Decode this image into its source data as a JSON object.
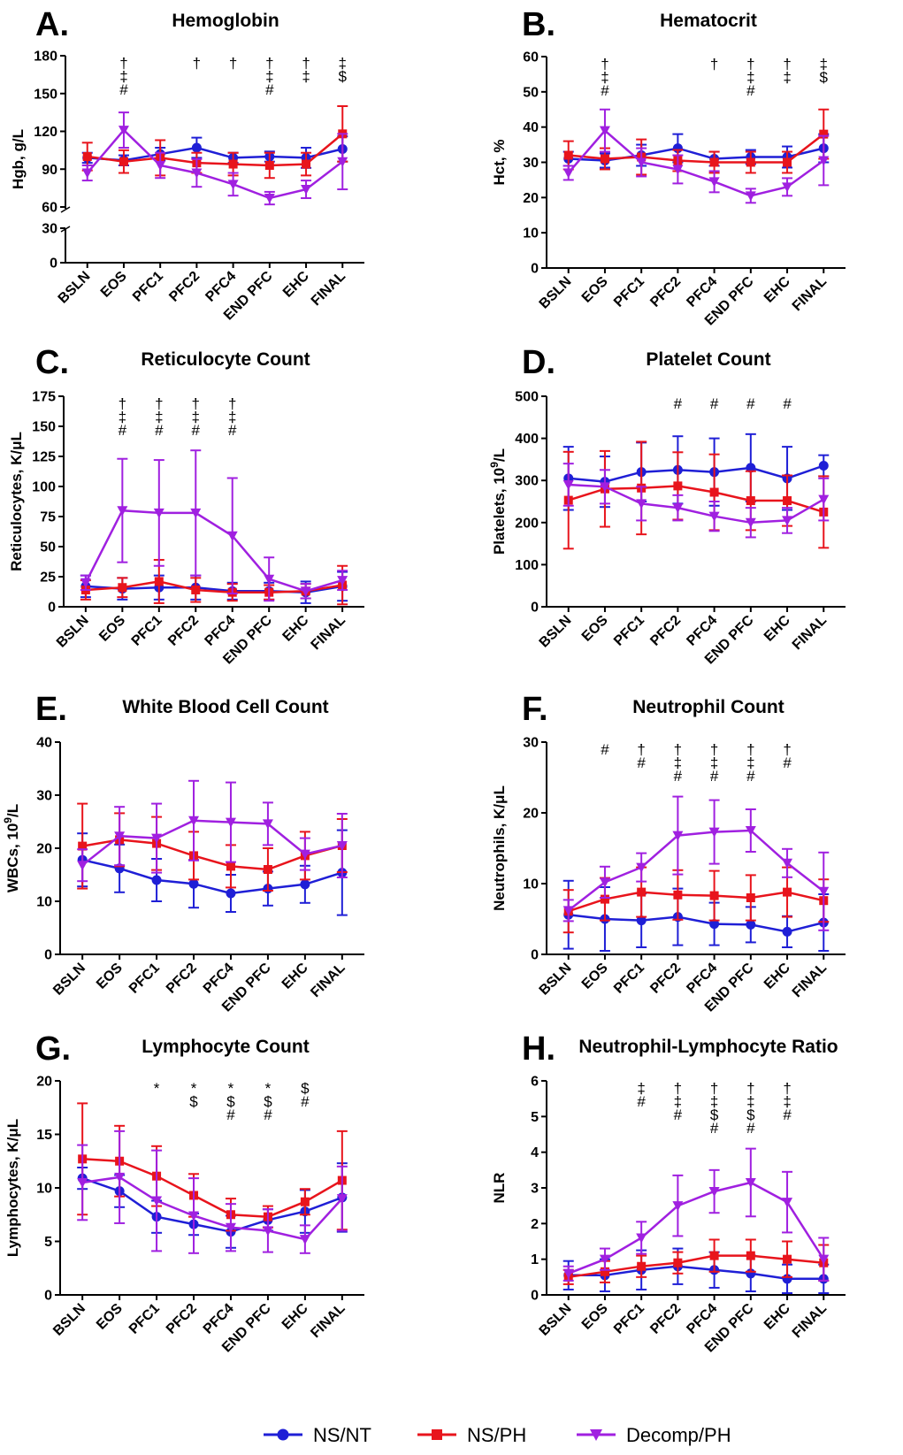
{
  "colors": {
    "ns_nt": "#1f1fd6",
    "ns_ph": "#e8141c",
    "decomp_ph": "#a020e0",
    "axis": "#000000"
  },
  "legend": {
    "items": [
      {
        "name": "NS/NT",
        "color": "#1f1fd6",
        "marker": "circle"
      },
      {
        "name": "NS/PH",
        "color": "#e8141c",
        "marker": "square"
      },
      {
        "name": "Decomp/PH",
        "color": "#a020e0",
        "marker": "triangle-down"
      }
    ]
  },
  "chart_data": [
    {
      "type": "line",
      "letter": "A.",
      "title": "Hemoglobin",
      "ylabel": "Hgb, g/L",
      "categories": [
        "BSLN",
        "EOS",
        "PFC1",
        "PFC2",
        "PFC4",
        "END PFC",
        "EHC",
        "FINAL"
      ],
      "y_broken": true,
      "ylim_lower": [
        0,
        30
      ],
      "ylim_upper": [
        60,
        180
      ],
      "yticks": [
        0,
        30,
        60,
        90,
        120,
        150,
        180
      ],
      "series": [
        {
          "name": "NS/NT",
          "values": [
            99,
            97,
            102,
            107,
            99,
            100,
            99,
            106
          ],
          "errors": [
            4,
            4,
            5,
            8,
            4,
            4,
            8,
            10
          ]
        },
        {
          "name": "NS/PH",
          "values": [
            100,
            96,
            99,
            95,
            94,
            93,
            94,
            118
          ],
          "errors": [
            11,
            9,
            14,
            8,
            9,
            10,
            9,
            22
          ]
        },
        {
          "name": "Decomp/PH",
          "values": [
            87,
            121,
            93,
            87,
            78,
            67,
            74,
            96
          ],
          "errors": [
            6,
            14,
            10,
            11,
            9,
            5,
            7,
            22
          ]
        }
      ],
      "annotations": [
        [
          "EOS",
          "†\n‡\n#"
        ],
        [
          "PFC2",
          "†"
        ],
        [
          "PFC4",
          "†"
        ],
        [
          "END PFC",
          "†\n‡\n#"
        ],
        [
          "EHC",
          "†\n‡"
        ],
        [
          "FINAL",
          "‡\n$"
        ]
      ]
    },
    {
      "type": "line",
      "letter": "B.",
      "title": "Hematocrit",
      "ylabel": "Hct, %",
      "categories": [
        "BSLN",
        "EOS",
        "PFC1",
        "PFC2",
        "PFC4",
        "END PFC",
        "EHC",
        "FINAL"
      ],
      "ylim": [
        0,
        60
      ],
      "yticks": [
        0,
        10,
        20,
        30,
        40,
        50,
        60
      ],
      "series": [
        {
          "name": "NS/NT",
          "values": [
            31,
            30.5,
            32,
            34,
            31,
            31.5,
            31.5,
            34
          ],
          "errors": [
            2,
            2,
            3,
            4,
            2,
            2,
            3,
            4
          ]
        },
        {
          "name": "NS/PH",
          "values": [
            32,
            31,
            31.5,
            30.5,
            30,
            30,
            30,
            38
          ],
          "errors": [
            4,
            3,
            5,
            3,
            3,
            3,
            3,
            7
          ]
        },
        {
          "name": "Decomp/PH",
          "values": [
            27,
            39,
            30,
            28,
            24.5,
            20.5,
            23,
            30.5
          ],
          "errors": [
            2,
            6,
            4,
            4,
            3,
            2,
            2.5,
            7
          ]
        }
      ],
      "annotations": [
        [
          "EOS",
          "†\n‡\n#"
        ],
        [
          "PFC4",
          "†"
        ],
        [
          "END PFC",
          "†\n‡\n#"
        ],
        [
          "EHC",
          "†\n‡"
        ],
        [
          "FINAL",
          "‡\n$"
        ]
      ]
    },
    {
      "type": "line",
      "letter": "C.",
      "title": "Reticulocyte Count",
      "ylabel": "Reticulocytes, K/μL",
      "categories": [
        "BSLN",
        "EOS",
        "PFC1",
        "PFC2",
        "PFC4",
        "END PFC",
        "EHC",
        "FINAL"
      ],
      "ylim": [
        0,
        175
      ],
      "yticks": [
        0,
        25,
        50,
        75,
        100,
        125,
        150,
        175
      ],
      "series": [
        {
          "name": "NS/NT",
          "values": [
            17,
            15,
            16,
            16,
            13,
            13,
            12,
            17
          ],
          "errors": [
            9,
            9,
            10,
            10,
            7,
            7,
            9,
            12
          ]
        },
        {
          "name": "NS/PH",
          "values": [
            14,
            16,
            21,
            14,
            12,
            12,
            13,
            18
          ],
          "errors": [
            8,
            8,
            18,
            10,
            7,
            6,
            6,
            16
          ]
        },
        {
          "name": "Decomp/PH",
          "values": [
            20,
            80,
            78,
            78,
            59,
            23,
            13,
            22
          ],
          "errors": [
            6,
            43,
            44,
            52,
            48,
            18,
            6,
            8
          ]
        }
      ],
      "annotations": [
        [
          "EOS",
          "†\n‡\n#"
        ],
        [
          "PFC1",
          "†\n‡\n#"
        ],
        [
          "PFC2",
          "†\n‡\n#"
        ],
        [
          "PFC4",
          "†\n‡\n#"
        ]
      ]
    },
    {
      "type": "line",
      "letter": "D.",
      "title": "Platelet Count",
      "ylabel": "Platelets, 10⁹/L",
      "categories": [
        "BSLN",
        "EOS",
        "PFC1",
        "PFC2",
        "PFC4",
        "END PFC",
        "EHC",
        "FINAL"
      ],
      "ylim": [
        0,
        500
      ],
      "yticks": [
        0,
        100,
        200,
        300,
        400,
        500
      ],
      "series": [
        {
          "name": "NS/NT",
          "values": [
            305,
            297,
            320,
            325,
            320,
            330,
            305,
            335
          ],
          "errors": [
            75,
            60,
            70,
            80,
            80,
            80,
            75,
            25
          ]
        },
        {
          "name": "NS/PH",
          "values": [
            253,
            280,
            282,
            287,
            272,
            252,
            252,
            225
          ],
          "errors": [
            115,
            90,
            110,
            80,
            90,
            70,
            60,
            85
          ]
        },
        {
          "name": "Decomp/PH",
          "values": [
            290,
            285,
            245,
            235,
            215,
            200,
            205,
            255
          ],
          "errors": [
            50,
            40,
            40,
            30,
            35,
            35,
            30,
            50
          ]
        }
      ],
      "annotations": [
        [
          "PFC2",
          "#"
        ],
        [
          "PFC4",
          "#"
        ],
        [
          "END PFC",
          "#"
        ],
        [
          "EHC",
          "#"
        ]
      ]
    },
    {
      "type": "line",
      "letter": "E.",
      "title": "White Blood Cell Count",
      "ylabel": "WBCs, 10⁹/L",
      "categories": [
        "BSLN",
        "EOS",
        "PFC1",
        "PFC2",
        "PFC4",
        "END PFC",
        "EHC",
        "FINAL"
      ],
      "ylim": [
        0,
        40
      ],
      "yticks": [
        0,
        10,
        20,
        30,
        40
      ],
      "series": [
        {
          "name": "NS/NT",
          "values": [
            17.8,
            16.2,
            14,
            13.3,
            11.5,
            12.4,
            13.2,
            15.4
          ],
          "errors": [
            5,
            4.5,
            4,
            4.5,
            3.5,
            3.2,
            3.5,
            8
          ]
        },
        {
          "name": "NS/PH",
          "values": [
            20.4,
            21.6,
            20.9,
            18.6,
            16.6,
            16,
            18.6,
            20.5
          ],
          "errors": [
            8,
            5,
            5,
            4.5,
            4,
            4,
            4.5,
            5
          ]
        },
        {
          "name": "Decomp/PH",
          "values": [
            16.8,
            22.3,
            21.9,
            25.2,
            24.9,
            24.6,
            18.9,
            20.5
          ],
          "errors": [
            3,
            5.5,
            6.5,
            7.5,
            7.5,
            4,
            3,
            6
          ]
        }
      ],
      "annotations": []
    },
    {
      "type": "line",
      "letter": "F.",
      "title": "Neutrophil  Count",
      "ylabel": "Neutrophils, K/μL",
      "categories": [
        "BSLN",
        "EOS",
        "PFC1",
        "PFC2",
        "PFC4",
        "END PFC",
        "EHC",
        "FINAL"
      ],
      "ylim": [
        0,
        30
      ],
      "yticks": [
        0,
        10,
        20,
        30
      ],
      "series": [
        {
          "name": "NS/NT",
          "values": [
            5.6,
            5,
            4.8,
            5.3,
            4.3,
            4.2,
            3.2,
            4.5
          ],
          "errors": [
            4.8,
            4.5,
            3.8,
            4,
            3,
            2.5,
            2.2,
            4
          ]
        },
        {
          "name": "NS/PH",
          "values": [
            6.1,
            7.8,
            8.8,
            8.4,
            8.3,
            8,
            8.8,
            7.6
          ],
          "errors": [
            3,
            3,
            3.5,
            3.5,
            3.5,
            3.2,
            3.5,
            3
          ]
        },
        {
          "name": "Decomp/PH",
          "values": [
            6.2,
            10.2,
            12.3,
            16.8,
            17.3,
            17.5,
            12.9,
            8.9
          ],
          "errors": [
            1.5,
            2.2,
            2,
            5.5,
            4.5,
            3,
            2,
            5.5
          ]
        }
      ],
      "annotations": [
        [
          "EOS",
          "#"
        ],
        [
          "PFC1",
          "†\n#"
        ],
        [
          "PFC2",
          "†\n‡\n#"
        ],
        [
          "PFC4",
          "†\n‡\n#"
        ],
        [
          "END PFC",
          "†\n‡\n#"
        ],
        [
          "EHC",
          "†\n#"
        ]
      ]
    },
    {
      "type": "line",
      "letter": "G.",
      "title": "Lymphocyte  Count",
      "ylabel": "Lymphocytes, K/μL",
      "categories": [
        "BSLN",
        "EOS",
        "PFC1",
        "PFC2",
        "PFC4",
        "END PFC",
        "EHC",
        "FINAL"
      ],
      "ylim": [
        0,
        20
      ],
      "yticks": [
        0,
        5,
        10,
        15,
        20
      ],
      "series": [
        {
          "name": "NS/NT",
          "values": [
            10.9,
            9.7,
            7.3,
            6.6,
            5.9,
            7,
            7.8,
            9.1
          ],
          "errors": [
            1,
            1.5,
            1.5,
            1,
            1.5,
            1,
            2,
            3.2
          ]
        },
        {
          "name": "NS/PH",
          "values": [
            12.7,
            12.5,
            11.1,
            9.3,
            7.5,
            7.3,
            8.7,
            10.7
          ],
          "errors": [
            5.2,
            3.3,
            2.8,
            2,
            1.5,
            1,
            1.2,
            4.6
          ]
        },
        {
          "name": "Decomp/PH",
          "values": [
            10.5,
            11,
            8.8,
            7.4,
            6.3,
            6,
            5.2,
            9
          ],
          "errors": [
            3.5,
            4.3,
            4.7,
            3.5,
            2.2,
            2,
            1.3,
            3
          ]
        }
      ],
      "annotations": [
        [
          "PFC1",
          "*"
        ],
        [
          "PFC2",
          "*\n$"
        ],
        [
          "PFC4",
          "*\n$\n#"
        ],
        [
          "END PFC",
          "*\n$\n#"
        ],
        [
          "EHC",
          "$\n#"
        ]
      ]
    },
    {
      "type": "line",
      "letter": "H.",
      "title": "Neutrophil-Lymphocyte Ratio",
      "ylabel": "NLR",
      "categories": [
        "BSLN",
        "EOS",
        "PFC1",
        "PFC2",
        "PFC4",
        "END PFC",
        "EHC",
        "FINAL"
      ],
      "ylim": [
        0,
        6
      ],
      "yticks": [
        0,
        1,
        2,
        3,
        4,
        5,
        6
      ],
      "series": [
        {
          "name": "NS/NT",
          "values": [
            0.55,
            0.55,
            0.7,
            0.8,
            0.7,
            0.6,
            0.45,
            0.45
          ],
          "errors": [
            0.4,
            0.45,
            0.55,
            0.5,
            0.5,
            0.5,
            0.4,
            0.4
          ]
        },
        {
          "name": "NS/PH",
          "values": [
            0.5,
            0.65,
            0.8,
            0.9,
            1.1,
            1.1,
            1.0,
            0.9
          ],
          "errors": [
            0.2,
            0.3,
            0.3,
            0.3,
            0.45,
            0.45,
            0.5,
            0.5
          ]
        },
        {
          "name": "Decomp/PH",
          "values": [
            0.6,
            1.0,
            1.6,
            2.5,
            2.9,
            3.15,
            2.6,
            1.0
          ],
          "errors": [
            0.2,
            0.3,
            0.45,
            0.85,
            0.6,
            0.95,
            0.85,
            0.6
          ]
        }
      ],
      "annotations": [
        [
          "PFC1",
          "‡\n#"
        ],
        [
          "PFC2",
          "†\n‡\n#"
        ],
        [
          "PFC4",
          "†\n‡\n$\n#"
        ],
        [
          "END PFC",
          "†\n‡\n$\n#"
        ],
        [
          "EHC",
          "†\n‡\n#"
        ]
      ]
    }
  ]
}
